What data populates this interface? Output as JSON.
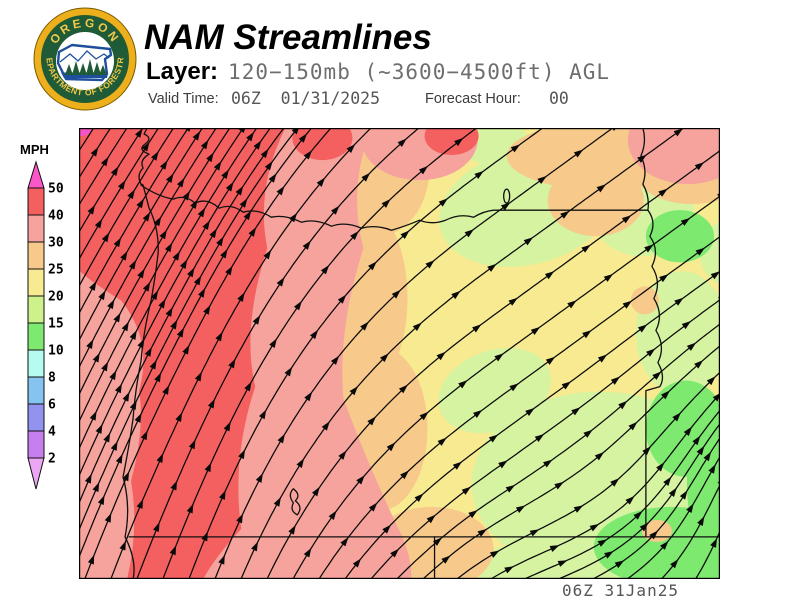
{
  "header": {
    "title": "NAM Streamlines",
    "layer_label": "Layer:",
    "layer_value": "120−150mb (~3600−4500ft) AGL",
    "valid_time_label": "Valid Time:",
    "valid_time_value": "06Z  01/31/2025",
    "forecast_hour_label": "Forecast Hour:",
    "forecast_hour_value": "00",
    "logo": {
      "arc_top": "OREGON",
      "arc_bottom": "DEPARTMENT OF FORESTRY",
      "ring_color": "#edb01c",
      "disc_color": "#1e5b36",
      "text_color": "#f3c84a",
      "emblem_blue": "#1d4f9c"
    }
  },
  "legend": {
    "units_label": "MPH",
    "ticks": [
      "50",
      "40",
      "30",
      "25",
      "20",
      "15",
      "10",
      "8",
      "6",
      "4",
      "2"
    ],
    "segment_colors": [
      "#f4605f",
      "#f5a39c",
      "#f7c98b",
      "#f7ea90",
      "#cdf28c",
      "#7de96e",
      "#b5fbef",
      "#85c3f0",
      "#9193ee",
      "#c77ff0"
    ],
    "above_max_color": "#f956c8",
    "below_min_color": "#eba6f4"
  },
  "map": {
    "timestamp": "06Z 31Jan25",
    "line_color": "#0a0a0a",
    "field_colors": {
      "magenta": "#f554c8",
      "red": "#f4605f",
      "salmon": "#f5a39c",
      "orange": "#f7c98b",
      "yellow": "#f7ea90",
      "light_green": "#d5f3a0",
      "green": "#7de96e"
    }
  }
}
